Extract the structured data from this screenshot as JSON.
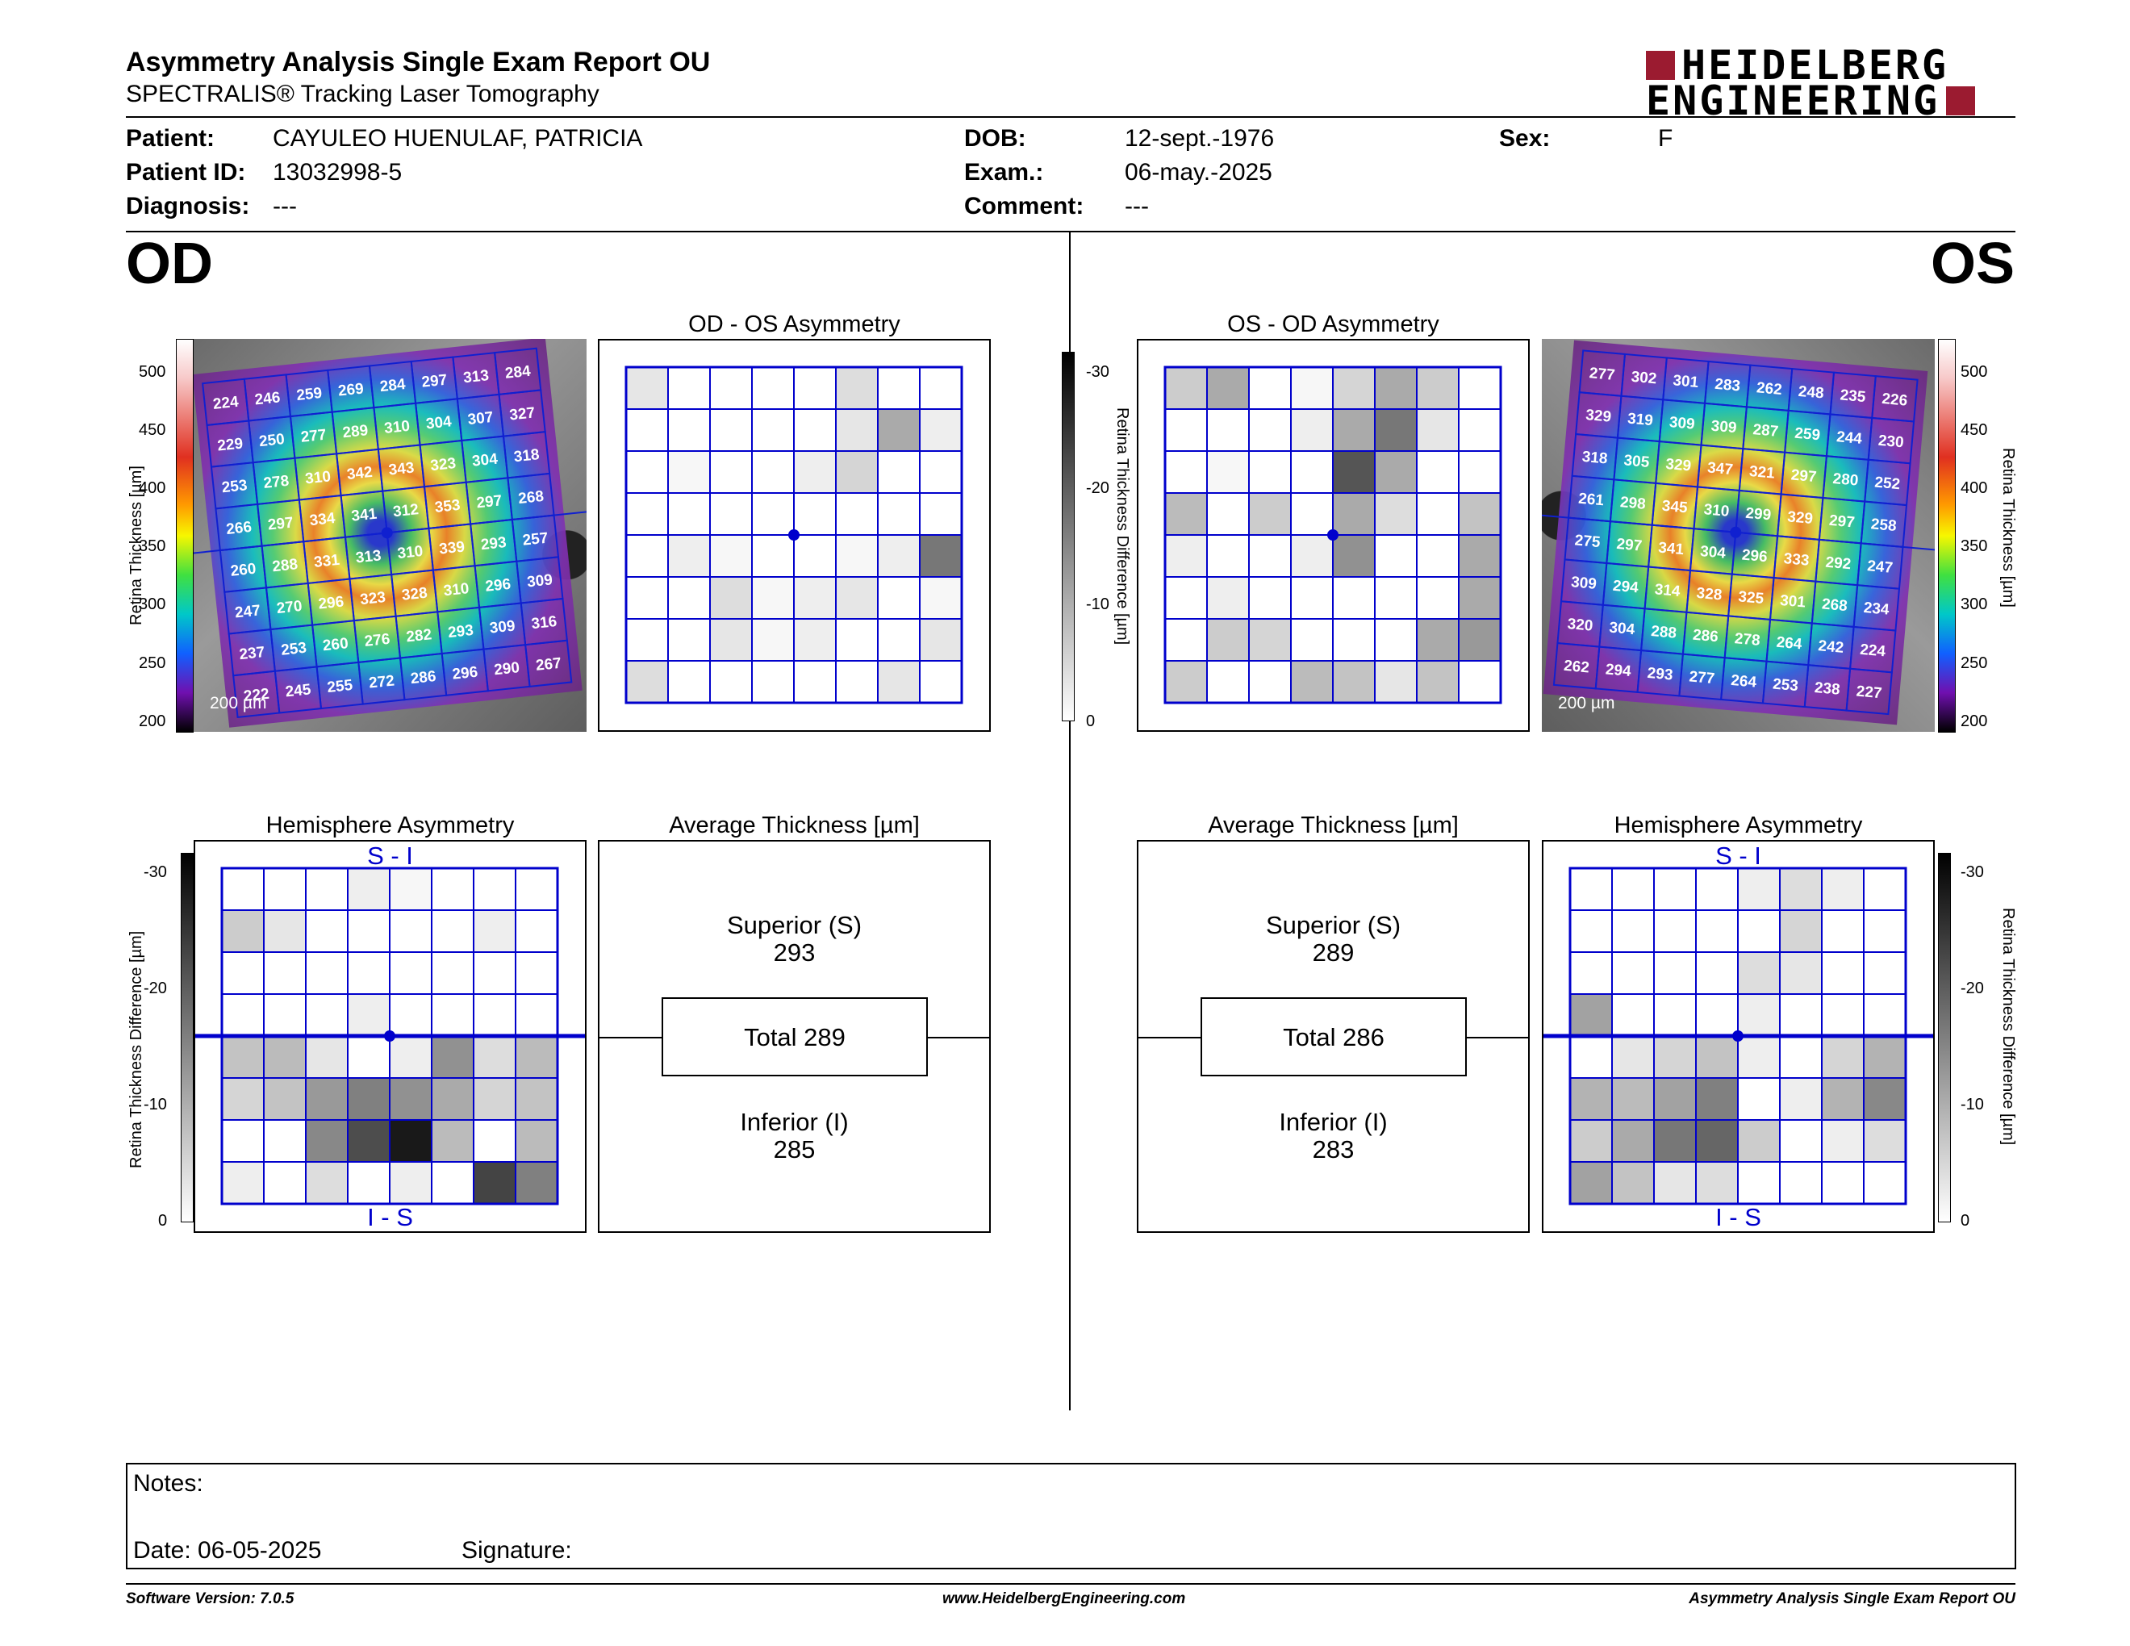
{
  "report": {
    "title": "Asymmetry Analysis Single Exam Report OU",
    "subtitle": "SPECTRALIS® Tracking Laser Tomography",
    "logo_line1": "HEIDELBERG",
    "logo_line2": "ENGINEERING",
    "brand_color": "#9b1b30"
  },
  "patient": {
    "patient_label": "Patient:",
    "patient_value": "CAYULEO HUENULAF, PATRICIA",
    "id_label": "Patient ID:",
    "id_value": "13032998-5",
    "diagnosis_label": "Diagnosis:",
    "diagnosis_value": "---",
    "dob_label": "DOB:",
    "dob_value": "12-sept.-1976",
    "exam_label": "Exam.:",
    "exam_value": "06-may.-2025",
    "comment_label": "Comment:",
    "comment_value": "---",
    "sex_label": "Sex:",
    "sex_value": "F"
  },
  "od": {
    "eye_label": "OD",
    "asym_title": "OD - OS Asymmetry",
    "hemi_title": "Hemisphere Asymmetry",
    "avg_title": "Average Thickness [µm]",
    "hemi_top": "S - I",
    "hemi_bottom": "I - S",
    "superior_label": "Superior (S)",
    "superior_value": "293",
    "total_label": "Total 289",
    "inferior_label": "Inferior (I)",
    "inferior_value": "285",
    "scale_bar": "200 µm",
    "thickness_grid": [
      [
        224,
        246,
        259,
        269,
        284,
        297,
        313,
        284
      ],
      [
        229,
        250,
        277,
        289,
        310,
        304,
        307,
        327
      ],
      [
        253,
        278,
        310,
        342,
        343,
        323,
        304,
        318
      ],
      [
        266,
        297,
        334,
        341,
        312,
        353,
        297,
        268
      ],
      [
        260,
        288,
        331,
        313,
        310,
        339,
        293,
        257
      ],
      [
        247,
        270,
        296,
        323,
        328,
        310,
        296,
        309
      ],
      [
        237,
        253,
        260,
        276,
        282,
        293,
        309,
        316
      ],
      [
        222,
        245,
        255,
        272,
        286,
        296,
        290,
        267
      ]
    ],
    "asym_grid": [
      [
        3,
        0,
        0,
        0,
        0,
        4,
        0,
        0
      ],
      [
        0,
        0,
        0,
        0,
        0,
        3,
        10,
        2
      ],
      [
        0,
        1,
        0,
        0,
        2,
        5,
        0,
        0
      ],
      [
        0,
        0,
        0,
        0,
        0,
        0,
        0,
        0
      ],
      [
        0,
        2,
        1,
        0,
        0,
        1,
        2,
        16
      ],
      [
        0,
        0,
        4,
        1,
        2,
        3,
        0,
        1
      ],
      [
        0,
        0,
        3,
        1,
        2,
        0,
        0,
        3
      ],
      [
        4,
        0,
        0,
        0,
        0,
        0,
        3,
        0
      ]
    ],
    "hemi_grid": [
      [
        0,
        0,
        0,
        2,
        1,
        0,
        0,
        0
      ],
      [
        6,
        3,
        0,
        0,
        0,
        0,
        2,
        0
      ],
      [
        0,
        0,
        0,
        0,
        0,
        0,
        0,
        0
      ],
      [
        0,
        0,
        0,
        2,
        0,
        0,
        0,
        0
      ],
      [
        7,
        8,
        3,
        0,
        2,
        13,
        4,
        8
      ],
      [
        5,
        7,
        12,
        15,
        13,
        10,
        5,
        7
      ],
      [
        0,
        0,
        14,
        21,
        27,
        8,
        0,
        8
      ],
      [
        2,
        0,
        4,
        0,
        2,
        0,
        22,
        15
      ]
    ]
  },
  "os": {
    "eye_label": "OS",
    "asym_title": "OS - OD Asymmetry",
    "hemi_title": "Hemisphere Asymmetry",
    "avg_title": "Average Thickness [µm]",
    "hemi_top": "S - I",
    "hemi_bottom": "I - S",
    "superior_label": "Superior (S)",
    "superior_value": "289",
    "total_label": "Total 286",
    "inferior_label": "Inferior (I)",
    "inferior_value": "283",
    "scale_bar": "200 µm",
    "thickness_grid": [
      [
        277,
        302,
        301,
        283,
        262,
        248,
        235,
        226
      ],
      [
        329,
        319,
        309,
        309,
        287,
        259,
        244,
        230
      ],
      [
        318,
        305,
        329,
        347,
        321,
        297,
        280,
        252
      ],
      [
        261,
        298,
        345,
        310,
        299,
        329,
        297,
        258
      ],
      [
        275,
        297,
        341,
        304,
        296,
        333,
        292,
        247
      ],
      [
        309,
        294,
        314,
        328,
        325,
        301,
        268,
        234
      ],
      [
        320,
        304,
        288,
        286,
        278,
        264,
        242,
        224
      ],
      [
        262,
        294,
        293,
        277,
        264,
        253,
        238,
        227
      ]
    ],
    "asym_grid": [
      [
        6,
        10,
        0,
        1,
        5,
        10,
        6,
        0
      ],
      [
        0,
        0,
        0,
        2,
        10,
        16,
        3,
        0
      ],
      [
        0,
        1,
        0,
        0,
        20,
        10,
        0,
        0
      ],
      [
        8,
        0,
        6,
        0,
        10,
        4,
        0,
        7
      ],
      [
        2,
        0,
        0,
        2,
        13,
        0,
        0,
        10
      ],
      [
        0,
        2,
        0,
        0,
        0,
        0,
        0,
        10
      ],
      [
        0,
        6,
        5,
        0,
        0,
        0,
        10,
        12
      ],
      [
        6,
        0,
        0,
        8,
        7,
        3,
        7,
        0
      ]
    ],
    "hemi_grid": [
      [
        0,
        0,
        0,
        0,
        2,
        4,
        2,
        0
      ],
      [
        0,
        0,
        0,
        0,
        0,
        5,
        0,
        0
      ],
      [
        0,
        0,
        0,
        0,
        4,
        3,
        0,
        0
      ],
      [
        11,
        0,
        0,
        0,
        2,
        0,
        0,
        0
      ],
      [
        0,
        3,
        5,
        7,
        2,
        0,
        5,
        9
      ],
      [
        9,
        8,
        11,
        15,
        0,
        2,
        9,
        14
      ],
      [
        6,
        10,
        16,
        18,
        6,
        0,
        2,
        4
      ],
      [
        11,
        7,
        3,
        4,
        0,
        0,
        0,
        0
      ]
    ]
  },
  "scales": {
    "thickness_ticks": [
      "500",
      "450",
      "400",
      "350",
      "300",
      "250",
      "200"
    ],
    "thickness_label": "Retina  Thickness [µm]",
    "diff_ticks": [
      "-30",
      "-20",
      "-10",
      "0"
    ],
    "diff_label": "Retina Thickness Difference [µm]"
  },
  "notes": {
    "notes_label": "Notes:",
    "date_label": "Date: 06-05-2025",
    "signature_label": "Signature:"
  },
  "footer": {
    "software": "Software Version: 7.0.5",
    "website": "www.HeidelbergEngineering.com",
    "report_name": "Asymmetry Analysis Single Exam Report OU"
  }
}
